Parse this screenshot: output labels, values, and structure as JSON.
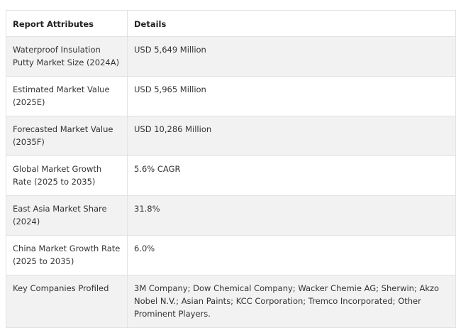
{
  "table": {
    "headers": [
      "Report Attributes",
      "Details"
    ],
    "rows": [
      {
        "attribute": "Waterproof Insulation Putty Market Size (2024A)",
        "detail": "USD 5,649 Million"
      },
      {
        "attribute": "Estimated Market Value (2025E)",
        "detail": "USD 5,965 Million"
      },
      {
        "attribute": "Forecasted Market Value (2035F)",
        "detail": "USD 10,286 Million"
      },
      {
        "attribute": "Global Market Growth Rate (2025 to 2035)",
        "detail": "5.6% CAGR"
      },
      {
        "attribute": "East Asia Market Share (2024)",
        "detail": "31.8%"
      },
      {
        "attribute": "China Market Growth Rate (2025 to 2035)",
        "detail": "6.0%"
      },
      {
        "attribute": "Key Companies Profiled",
        "detail": "3M Company; Dow Chemical Company; Wacker Chemie AG; Sherwin; Akzo Nobel N.V.; Asian Paints; KCC Corporation; Tremco Incorporated; Other Prominent Players."
      }
    ]
  }
}
